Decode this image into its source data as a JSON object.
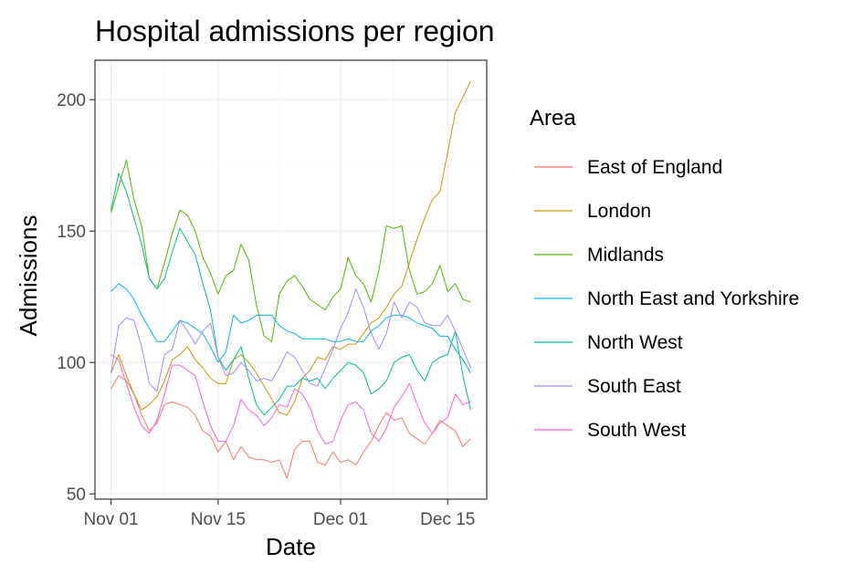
{
  "chart_data": {
    "type": "line",
    "title": "Hospital admissions per region",
    "xlabel": "Date",
    "ylabel": "Admissions",
    "legend_title": "Area",
    "legend_position": "right",
    "grid": true,
    "x_ticks": [
      {
        "label": "Nov 01",
        "day": 0
      },
      {
        "label": "Nov 15",
        "day": 14
      },
      {
        "label": "Dec 01",
        "day": 30
      },
      {
        "label": "Dec 15",
        "day": 44
      }
    ],
    "y_ticks": [
      50,
      100,
      150,
      200
    ],
    "xlim_days": [
      -2.1,
      49.1
    ],
    "ylim": [
      48,
      215
    ],
    "x": [
      "Nov 01",
      "Nov 02",
      "Nov 03",
      "Nov 04",
      "Nov 05",
      "Nov 06",
      "Nov 07",
      "Nov 08",
      "Nov 09",
      "Nov 10",
      "Nov 11",
      "Nov 12",
      "Nov 13",
      "Nov 14",
      "Nov 15",
      "Nov 16",
      "Nov 17",
      "Nov 18",
      "Nov 19",
      "Nov 20",
      "Nov 21",
      "Nov 22",
      "Nov 23",
      "Nov 24",
      "Nov 25",
      "Nov 26",
      "Nov 27",
      "Nov 28",
      "Nov 29",
      "Nov 30",
      "Dec 01",
      "Dec 02",
      "Dec 03",
      "Dec 04",
      "Dec 05",
      "Dec 06",
      "Dec 07",
      "Dec 08",
      "Dec 09",
      "Dec 10",
      "Dec 11",
      "Dec 12",
      "Dec 13",
      "Dec 14",
      "Dec 15",
      "Dec 16",
      "Dec 17",
      "Dec 18"
    ],
    "series": [
      {
        "name": "East of England",
        "color": "#F8766D",
        "values": [
          90,
          95,
          93,
          88,
          80,
          74,
          77,
          84,
          85,
          84,
          83,
          80,
          74,
          72,
          66,
          70,
          63,
          68,
          64,
          63,
          63,
          62,
          63,
          56,
          67,
          70,
          70,
          62,
          61,
          66,
          62,
          63,
          61,
          66,
          70,
          76,
          81,
          78,
          79,
          73,
          71,
          69,
          73,
          78,
          76,
          74,
          68,
          71
        ]
      },
      {
        "name": "London",
        "color": "#C49A00",
        "values": [
          96,
          103,
          95,
          88,
          82,
          84,
          87,
          93,
          101,
          103,
          106,
          101,
          98,
          94,
          92,
          92,
          101,
          103,
          100,
          96,
          91,
          86,
          81,
          80,
          85,
          94,
          97,
          102,
          101,
          106,
          105,
          107,
          107,
          111,
          115,
          117,
          121,
          126,
          129,
          138,
          147,
          155,
          162,
          165,
          180,
          195,
          201,
          207
        ]
      },
      {
        "name": "Midlands",
        "color": "#53B400",
        "values": [
          157,
          167,
          177,
          162,
          152,
          132,
          128,
          138,
          149,
          158,
          156,
          150,
          140,
          134,
          126,
          133,
          135,
          145,
          139,
          122,
          110,
          108,
          126,
          131,
          133,
          129,
          124,
          122,
          120,
          125,
          128,
          140,
          133,
          130,
          123,
          135,
          152,
          151,
          152,
          135,
          126,
          127,
          130,
          137,
          127,
          130,
          124,
          123
        ]
      },
      {
        "name": "North East and Yorkshire",
        "color": "#00B6EB",
        "values": [
          127,
          130,
          128,
          124,
          118,
          113,
          108,
          108,
          112,
          116,
          115,
          113,
          111,
          106,
          100,
          104,
          118,
          115,
          116,
          118,
          118,
          118,
          114,
          112,
          111,
          109,
          109,
          109,
          109,
          108,
          108,
          109,
          108,
          108,
          112,
          114,
          117,
          118,
          118,
          117,
          115,
          114,
          113,
          110,
          110,
          105,
          101,
          96
        ]
      },
      {
        "name": "North West",
        "color": "#00C094",
        "values": [
          158,
          172,
          165,
          155,
          145,
          132,
          128,
          132,
          142,
          151,
          146,
          141,
          130,
          120,
          102,
          97,
          101,
          106,
          94,
          84,
          80,
          83,
          86,
          91,
          91,
          94,
          93,
          94,
          90,
          94,
          97,
          100,
          99,
          96,
          88,
          90,
          93,
          100,
          102,
          103,
          97,
          93,
          100,
          102,
          103,
          112,
          95,
          82
        ]
      },
      {
        "name": "South East",
        "color": "#A58AFF",
        "values": [
          96,
          114,
          117,
          116,
          106,
          92,
          89,
          103,
          105,
          116,
          112,
          107,
          112,
          115,
          102,
          95,
          96,
          100,
          97,
          93,
          94,
          93,
          98,
          104,
          102,
          97,
          92,
          91,
          98,
          105,
          113,
          119,
          128,
          121,
          111,
          105,
          111,
          123,
          117,
          123,
          121,
          115,
          114,
          114,
          118,
          112,
          105,
          98
        ]
      },
      {
        "name": "South West",
        "color": "#FB61D7",
        "values": [
          103,
          101,
          92,
          83,
          76,
          73,
          78,
          88,
          99,
          99,
          97,
          95,
          85,
          76,
          70,
          70,
          76,
          86,
          82,
          80,
          76,
          79,
          84,
          83,
          90,
          88,
          83,
          74,
          69,
          70,
          78,
          84,
          85,
          82,
          73,
          70,
          75,
          83,
          87,
          92,
          84,
          77,
          73,
          77,
          79,
          88,
          84,
          85
        ]
      }
    ]
  }
}
